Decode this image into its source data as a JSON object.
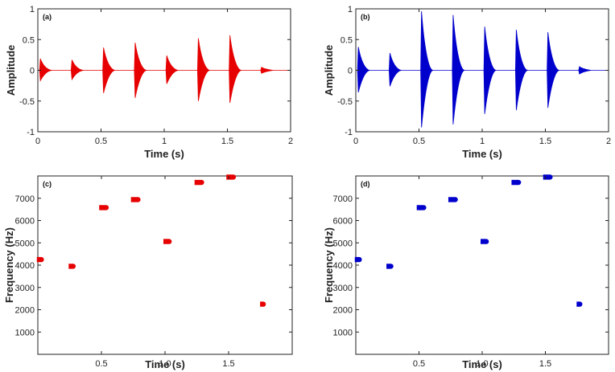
{
  "colors": {
    "red": "#e60000",
    "blue": "#0000cc",
    "axis": "#222222"
  },
  "chart_data": [
    {
      "id": "a",
      "type": "waveform",
      "panel_label": "(a)",
      "color": "red",
      "xlabel": "Time (s)",
      "ylabel": "Amplitude",
      "xlim": [
        0,
        2
      ],
      "ylim": [
        -1,
        1
      ],
      "xticks": [
        0,
        0.5,
        1,
        1.5,
        2
      ],
      "xtick_labels": [
        "0",
        "0.5",
        "1",
        "1.5",
        "2"
      ],
      "yticks": [
        -1,
        -0.5,
        0,
        0.5,
        1
      ],
      "ytick_labels": [
        "-1",
        "-0.5",
        "0",
        "0.5",
        "1"
      ],
      "bursts": [
        {
          "t": 0.02,
          "pos": 0.19,
          "neg": -0.17
        },
        {
          "t": 0.27,
          "pos": 0.17,
          "neg": -0.15
        },
        {
          "t": 0.52,
          "pos": 0.37,
          "neg": -0.37
        },
        {
          "t": 0.77,
          "pos": 0.45,
          "neg": -0.45
        },
        {
          "t": 1.02,
          "pos": 0.24,
          "neg": -0.22
        },
        {
          "t": 1.27,
          "pos": 0.52,
          "neg": -0.5
        },
        {
          "t": 1.52,
          "pos": 0.57,
          "neg": -0.53
        },
        {
          "t": 1.77,
          "pos": 0.05,
          "neg": -0.05
        }
      ]
    },
    {
      "id": "b",
      "type": "waveform",
      "panel_label": "(b)",
      "color": "blue",
      "xlabel": "Time (s)",
      "ylabel": "Amplitude",
      "xlim": [
        0,
        2
      ],
      "ylim": [
        -1,
        1
      ],
      "xticks": [
        0,
        0.5,
        1,
        1.5,
        2
      ],
      "xtick_labels": [
        "0",
        "0.5",
        "1",
        "1.5",
        "2"
      ],
      "yticks": [
        -1,
        -0.5,
        0,
        0.5,
        1
      ],
      "ytick_labels": [
        "-1",
        "-0.5",
        "0",
        "0.5",
        "1"
      ],
      "bursts": [
        {
          "t": 0.02,
          "pos": 0.38,
          "neg": -0.36
        },
        {
          "t": 0.27,
          "pos": 0.28,
          "neg": -0.26
        },
        {
          "t": 0.52,
          "pos": 0.96,
          "neg": -0.93
        },
        {
          "t": 0.77,
          "pos": 0.9,
          "neg": -0.88
        },
        {
          "t": 1.02,
          "pos": 0.71,
          "neg": -0.71
        },
        {
          "t": 1.27,
          "pos": 0.66,
          "neg": -0.65
        },
        {
          "t": 1.52,
          "pos": 0.62,
          "neg": -0.61
        },
        {
          "t": 1.77,
          "pos": 0.06,
          "neg": -0.06
        }
      ]
    },
    {
      "id": "c",
      "type": "scatter",
      "panel_label": "(c)",
      "color": "red",
      "xlabel": "Time (s)",
      "ylabel": "Frequency (Hz)",
      "xlim": [
        0,
        2
      ],
      "ylim": [
        0,
        8000
      ],
      "xticks": [
        0.5,
        1,
        1.5
      ],
      "xtick_labels": [
        "0.5",
        "1.0",
        "1.5"
      ],
      "yticks": [
        1000,
        2000,
        3000,
        4000,
        5000,
        6000,
        7000
      ],
      "ytick_labels": [
        "1000",
        "2000",
        "3000",
        "4000",
        "5000",
        "6000",
        "7000"
      ],
      "points": [
        {
          "t": 0.02,
          "f": 4250,
          "w": 0.03
        },
        {
          "t": 0.27,
          "f": 3950,
          "w": 0.03
        },
        {
          "t": 0.52,
          "f": 6580,
          "w": 0.05
        },
        {
          "t": 0.77,
          "f": 6940,
          "w": 0.05
        },
        {
          "t": 1.02,
          "f": 5060,
          "w": 0.04
        },
        {
          "t": 1.27,
          "f": 7710,
          "w": 0.05
        },
        {
          "t": 1.52,
          "f": 7950,
          "w": 0.05
        },
        {
          "t": 1.77,
          "f": 2250,
          "w": 0.02
        }
      ]
    },
    {
      "id": "d",
      "type": "scatter",
      "panel_label": "(d)",
      "color": "blue",
      "xlabel": "Time (s)",
      "ylabel": "Frequency (Hz)",
      "xlim": [
        0,
        2
      ],
      "ylim": [
        0,
        8000
      ],
      "xticks": [
        0.5,
        1,
        1.5
      ],
      "xtick_labels": [
        "0.5",
        "1.0",
        "1.5"
      ],
      "yticks": [
        1000,
        2000,
        3000,
        4000,
        5000,
        6000,
        7000
      ],
      "ytick_labels": [
        "1000",
        "2000",
        "3000",
        "4000",
        "5000",
        "6000",
        "7000"
      ],
      "points": [
        {
          "t": 0.02,
          "f": 4250,
          "w": 0.03
        },
        {
          "t": 0.27,
          "f": 3950,
          "w": 0.03
        },
        {
          "t": 0.52,
          "f": 6580,
          "w": 0.05
        },
        {
          "t": 0.77,
          "f": 6940,
          "w": 0.05
        },
        {
          "t": 1.02,
          "f": 5060,
          "w": 0.04
        },
        {
          "t": 1.27,
          "f": 7710,
          "w": 0.05
        },
        {
          "t": 1.52,
          "f": 7950,
          "w": 0.05
        },
        {
          "t": 1.77,
          "f": 2250,
          "w": 0.02
        }
      ]
    }
  ]
}
